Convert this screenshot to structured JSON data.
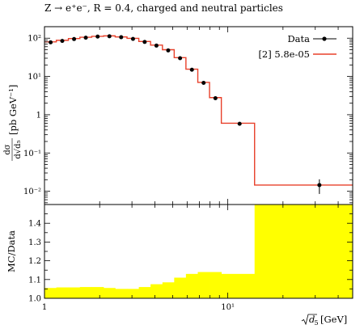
{
  "chart_data": [
    {
      "type": "line",
      "title": "Z → e⁺e⁻, R = 0.4, charged and neutral particles",
      "ylabel": "dσ/d√d₅ [pb GeV⁻¹]",
      "ylabel_parts": {
        "num": "dσ",
        "den": "d√d₅",
        "unit": "[pb GeV⁻¹]"
      },
      "xscale": "log",
      "yscale": "log",
      "xlim": [
        1,
        48
      ],
      "ylim": [
        0.0045,
        200
      ],
      "xticks": [
        {
          "v": 1,
          "label": "1"
        },
        {
          "v": 10,
          "label": "10¹"
        }
      ],
      "yticks": [
        {
          "v": 100,
          "label": "10²"
        },
        {
          "v": 10,
          "label": "10¹"
        },
        {
          "v": 1,
          "label": "1"
        },
        {
          "v": 0.1,
          "label": "10⁻¹"
        },
        {
          "v": 0.01,
          "label": "10⁻²"
        }
      ],
      "legend": {
        "placement": "top-right"
      },
      "series": [
        {
          "name": "Data",
          "style": "points",
          "color": "#000000",
          "x": [
            1.08,
            1.25,
            1.45,
            1.68,
            1.95,
            2.26,
            2.62,
            3.04,
            3.52,
            4.08,
            4.73,
            5.49,
            6.37,
            7.38,
            8.56,
            11.6,
            31.6
          ],
          "y": [
            78,
            85,
            95,
            103,
            110,
            112,
            106,
            96,
            80,
            64,
            48,
            30,
            15,
            6.8,
            2.7,
            0.58,
            0.0145
          ],
          "yerr": [
            3,
            3,
            3,
            3,
            3,
            3,
            3,
            3,
            3,
            2.5,
            2,
            1.5,
            0.8,
            0.4,
            0.2,
            0.05,
            0.006
          ]
        },
        {
          "name": "[2] 5.8e-05",
          "style": "step",
          "color": "#e8402a",
          "edges": [
            1,
            1.16,
            1.35,
            1.56,
            1.81,
            2.1,
            2.43,
            2.82,
            3.27,
            3.79,
            4.4,
            5.1,
            5.91,
            6.86,
            7.95,
            9.22,
            14.0,
            48
          ],
          "values": [
            80,
            88,
            98,
            106,
            112,
            115,
            108,
            99,
            82,
            66,
            50,
            31,
            15.5,
            7.0,
            2.8,
            0.6,
            0.0145
          ]
        }
      ]
    },
    {
      "type": "area",
      "ylabel": "MC/Data",
      "xlabel": "√d₅ [GeV]",
      "xlabel_parts": {
        "main": "d",
        "sub": "5",
        "unit": "[GeV]"
      },
      "xscale": "log",
      "xlim": [
        1,
        48
      ],
      "ylim": [
        1.0,
        1.5
      ],
      "yticks": [
        {
          "v": 1.0,
          "label": "1.0"
        },
        {
          "v": 1.1,
          "label": "1.1"
        },
        {
          "v": 1.2,
          "label": "1.2"
        },
        {
          "v": 1.3,
          "label": "1.3"
        },
        {
          "v": 1.4,
          "label": "1.4"
        }
      ],
      "xticks": [
        {
          "v": 1,
          "label": "1"
        },
        {
          "v": 10,
          "label": "10¹"
        }
      ],
      "band_color": "#ffff00",
      "series": [
        {
          "name": "",
          "edges": [
            1,
            1.16,
            1.35,
            1.56,
            1.81,
            2.1,
            2.43,
            2.82,
            3.27,
            3.79,
            4.4,
            5.1,
            5.91,
            6.86,
            7.95,
            9.22,
            14.0,
            48
          ],
          "values": [
            1.055,
            1.058,
            1.058,
            1.06,
            1.06,
            1.055,
            1.05,
            1.05,
            1.06,
            1.075,
            1.085,
            1.11,
            1.13,
            1.14,
            1.14,
            1.13,
            1.5
          ]
        }
      ]
    }
  ]
}
